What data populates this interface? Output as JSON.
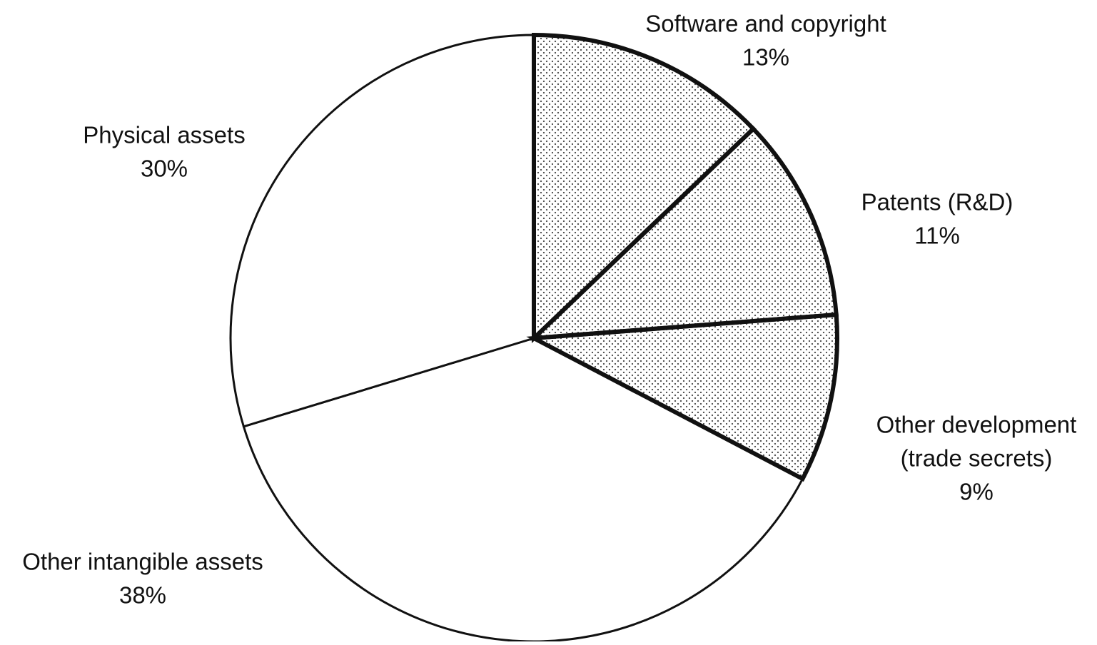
{
  "chart_data": {
    "type": "pie",
    "start_angle": "12 o'clock",
    "direction": "clockwise",
    "slices": [
      {
        "name": "software-and-copyright",
        "label_lines": [
          "Software and copyright"
        ],
        "value_label": "13%",
        "value": 13,
        "fill": "dotted",
        "emphasis": true
      },
      {
        "name": "patents",
        "label_lines": [
          "Patents (R&D)"
        ],
        "value_label": "11%",
        "value": 11,
        "fill": "dotted",
        "emphasis": true
      },
      {
        "name": "other-development",
        "label_lines": [
          "Other development",
          "(trade secrets)"
        ],
        "value_label": "9%",
        "value": 9,
        "fill": "dotted",
        "emphasis": true
      },
      {
        "name": "other-intangible-assets",
        "label_lines": [
          "Other intangible assets"
        ],
        "value_label": "38%",
        "value": 38,
        "fill": "white",
        "emphasis": false
      },
      {
        "name": "physical-assets",
        "label_lines": [
          "Physical assets"
        ],
        "value_label": "30%",
        "value": 30,
        "fill": "white",
        "emphasis": false
      }
    ],
    "colors": {
      "stroke": "#111111",
      "dot": "#4a4a4a",
      "background": "#ffffff"
    }
  }
}
